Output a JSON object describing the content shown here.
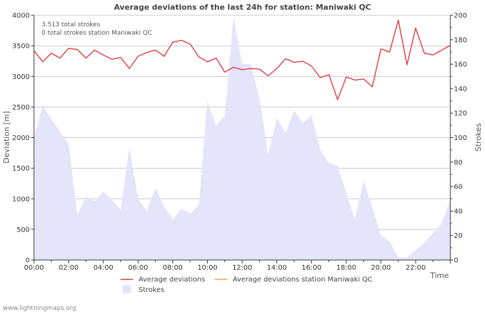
{
  "chart_data": {
    "type": "line",
    "title": "Average deviations of the last 24h for station: Maniwaki QC",
    "annotations": [
      "3.513 total strokes",
      "0 total strokes station Maniwaki QC"
    ],
    "xlabel": "Time",
    "ylabel": "Deviation  [m]",
    "y2label": "Strokes",
    "xlim": [
      0,
      24
    ],
    "ylim": [
      0,
      4000
    ],
    "y2lim": [
      0,
      200
    ],
    "x_ticks": [
      0,
      2,
      4,
      6,
      8,
      10,
      12,
      14,
      16,
      18,
      20,
      22
    ],
    "x_tick_labels": [
      "00:00",
      "02:00",
      "04:00",
      "06:00",
      "08:00",
      "10:00",
      "12:00",
      "14:00",
      "16:00",
      "18:00",
      "20:00",
      "22:00"
    ],
    "y_ticks": [
      0,
      500,
      1000,
      1500,
      2000,
      2500,
      3000,
      3500,
      4000
    ],
    "y2_ticks": [
      0,
      20,
      40,
      60,
      80,
      100,
      120,
      140,
      160,
      180,
      200
    ],
    "legend": [
      {
        "name": "Average deviations",
        "color": "#e0393e",
        "kind": "line"
      },
      {
        "name": "Average deviations station Maniwaki QC",
        "color": "#f39c4a",
        "kind": "line"
      },
      {
        "name": "Strokes",
        "color": "#e4e4fb",
        "kind": "area"
      }
    ],
    "series": [
      {
        "name": "Average deviations",
        "axis": "left",
        "x": [
          0,
          0.5,
          1,
          1.5,
          2,
          2.5,
          3,
          3.5,
          4,
          4.5,
          5,
          5.5,
          6,
          6.5,
          7,
          7.5,
          8,
          8.5,
          9,
          9.5,
          10,
          10.5,
          11,
          11.5,
          12,
          12.5,
          13,
          13.5,
          14,
          14.5,
          15,
          15.5,
          16,
          16.5,
          17,
          17.5,
          18,
          18.5,
          19,
          19.5,
          20,
          20.5,
          21,
          21.5,
          22,
          22.5,
          23,
          23.5,
          24
        ],
        "values": [
          3420,
          3240,
          3380,
          3300,
          3460,
          3440,
          3300,
          3430,
          3350,
          3280,
          3310,
          3130,
          3330,
          3390,
          3430,
          3330,
          3560,
          3590,
          3530,
          3320,
          3240,
          3300,
          3070,
          3150,
          3110,
          3130,
          3120,
          3010,
          3130,
          3290,
          3230,
          3250,
          3170,
          2980,
          3030,
          2620,
          2990,
          2940,
          2960,
          2830,
          3450,
          3400,
          3920,
          3190,
          3790,
          3380,
          3350,
          3430,
          3510
        ]
      },
      {
        "name": "Strokes",
        "axis": "right",
        "x": [
          0,
          0.5,
          1,
          1.5,
          2,
          2.5,
          3,
          3.5,
          4,
          4.5,
          5,
          5.5,
          6,
          6.5,
          7,
          7.5,
          8,
          8.5,
          9,
          9.5,
          10,
          10.5,
          11,
          11.5,
          12,
          12.5,
          13,
          13.5,
          14,
          14.5,
          15,
          15.5,
          16,
          16.5,
          17,
          17.5,
          18,
          18.5,
          19,
          19.5,
          20,
          20.5,
          21,
          21.5,
          22,
          22.5,
          23,
          23.5,
          24
        ],
        "values": [
          100,
          126,
          115,
          105,
          95,
          37,
          52,
          48,
          56,
          49,
          41,
          92,
          50,
          40,
          59,
          44,
          33,
          42,
          38,
          45,
          130,
          110,
          118,
          199,
          160,
          160,
          132,
          86,
          116,
          104,
          122,
          112,
          118,
          90,
          79,
          77,
          55,
          33,
          65,
          43,
          20,
          15,
          2,
          2,
          8,
          14,
          22,
          30,
          50
        ]
      }
    ]
  },
  "footer": "www.lightningmaps.org"
}
